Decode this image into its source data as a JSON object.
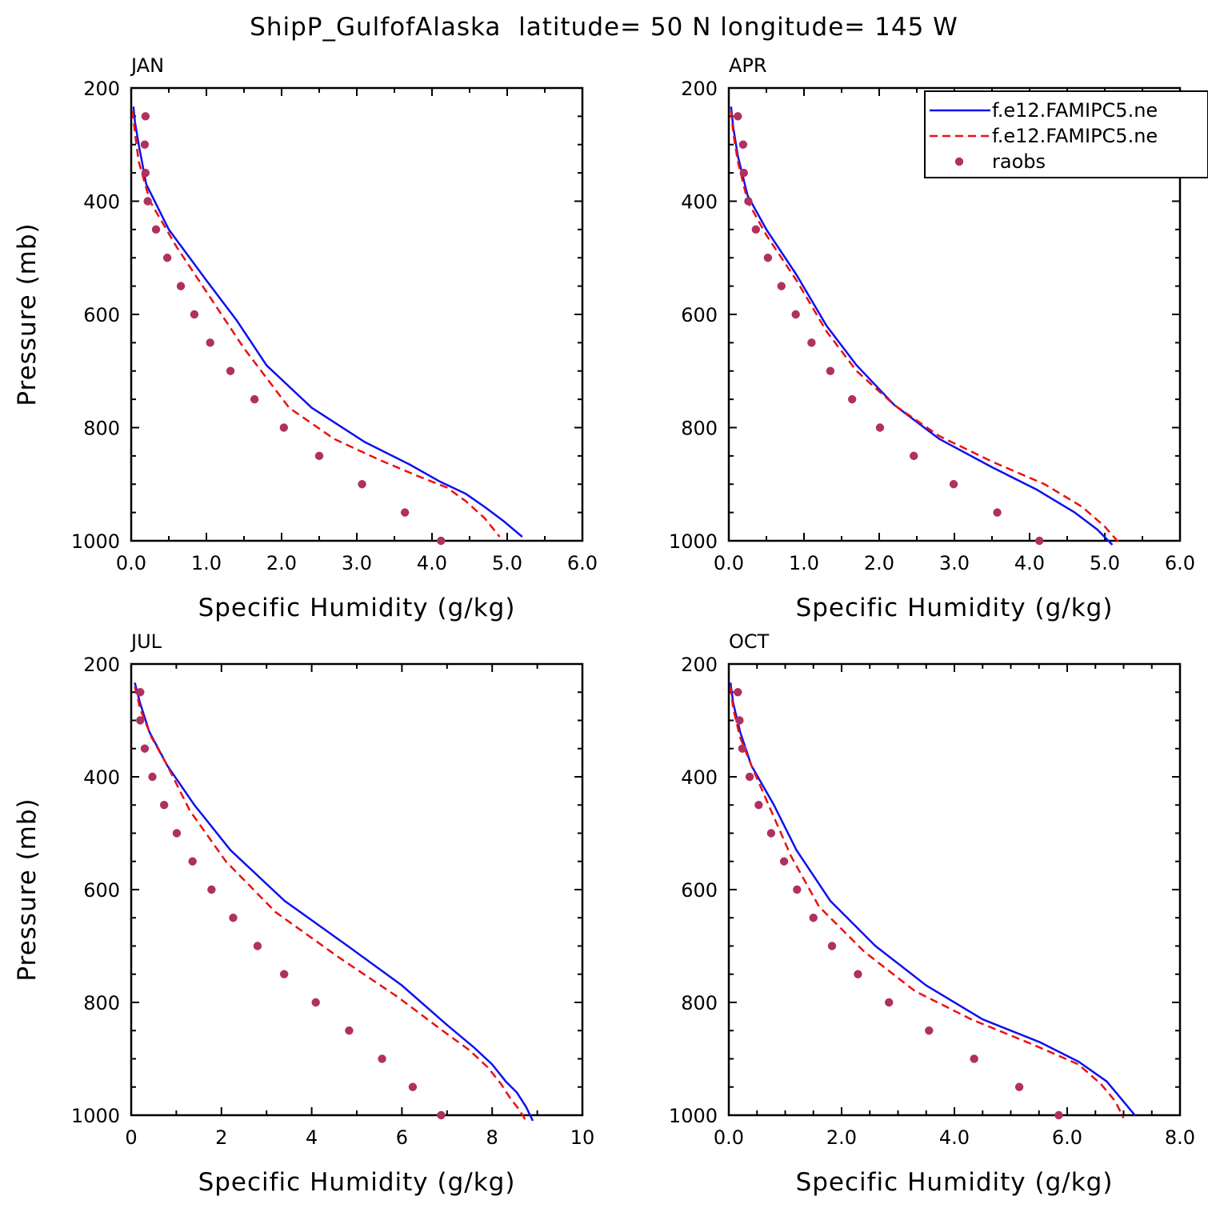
{
  "figure": {
    "title": "ShipP_GulfofAlaska  latitude= 50 N longitude= 145 W",
    "colors": {
      "model1": "#1010ee",
      "model2": "#ee1010",
      "raobs": "#b03060"
    }
  },
  "legend": {
    "panel": 1,
    "entries": [
      {
        "label": "f.e12.FAMIPC5.ne",
        "style": "solid",
        "color": "#1010ee"
      },
      {
        "label": "f.e12.FAMIPC5.ne",
        "style": "dashed",
        "color": "#ee1010"
      },
      {
        "label": "raobs",
        "style": "dot",
        "color": "#b03060"
      }
    ]
  },
  "chart_data": [
    {
      "type": "line",
      "panel_title": "JAN",
      "xlabel": "Specific Humidity (g/kg)",
      "ylabel": "Pressure (mb)",
      "xlim": [
        0,
        6
      ],
      "ylim": [
        1000,
        200
      ],
      "y_reversed": true,
      "xticks": [
        0,
        1,
        2,
        3,
        4,
        5,
        6
      ],
      "xtick_labels": [
        "0.0",
        "1.0",
        "2.0",
        "3.0",
        "4.0",
        "5.0",
        "6.0"
      ],
      "yticks": [
        200,
        400,
        600,
        800,
        1000
      ],
      "ytick_labels": [
        "200",
        "400",
        "600",
        "800",
        "1000"
      ],
      "x_minor": 0.5,
      "y_minor": 50,
      "series": [
        {
          "style": "solid",
          "color": "#1010ee",
          "x": [
            0.03,
            0.05,
            0.1,
            0.2,
            0.5,
            1.0,
            1.4,
            1.8,
            2.4,
            3.1,
            3.7,
            4.1,
            4.45,
            4.7,
            4.95,
            5.2
          ],
          "y": [
            233,
            260,
            300,
            370,
            450,
            540,
            610,
            690,
            765,
            825,
            865,
            895,
            917,
            940,
            965,
            993
          ]
        },
        {
          "style": "dashed",
          "color": "#ee1010",
          "x": [
            0.02,
            0.05,
            0.1,
            0.25,
            0.6,
            1.0,
            1.5,
            2.1,
            2.7,
            3.3,
            3.8,
            4.2,
            4.45,
            4.7,
            4.9
          ],
          "y": [
            240,
            280,
            330,
            400,
            480,
            560,
            660,
            765,
            820,
            857,
            885,
            906,
            930,
            960,
            993
          ]
        },
        {
          "style": "dot",
          "color": "#b03060",
          "x": [
            0.19,
            0.18,
            0.19,
            0.22,
            0.33,
            0.48,
            0.66,
            0.84,
            1.05,
            1.32,
            1.64,
            2.03,
            2.5,
            3.07,
            3.64,
            4.12
          ],
          "y": [
            250,
            300,
            350,
            400,
            450,
            500,
            550,
            600,
            650,
            700,
            750,
            800,
            850,
            900,
            950,
            1000
          ]
        }
      ]
    },
    {
      "type": "line",
      "panel_title": "APR",
      "xlabel": "Specific Humidity (g/kg)",
      "ylabel": "",
      "xlim": [
        0,
        6
      ],
      "ylim": [
        1000,
        200
      ],
      "y_reversed": true,
      "xticks": [
        0,
        1,
        2,
        3,
        4,
        5,
        6
      ],
      "xtick_labels": [
        "0.0",
        "1.0",
        "2.0",
        "3.0",
        "4.0",
        "5.0",
        "6.0"
      ],
      "yticks": [
        200,
        400,
        600,
        800,
        1000
      ],
      "ytick_labels": [
        "200",
        "400",
        "600",
        "800",
        "1000"
      ],
      "x_minor": 0.5,
      "y_minor": 50,
      "series": [
        {
          "style": "solid",
          "color": "#1010ee",
          "x": [
            0.03,
            0.06,
            0.12,
            0.25,
            0.5,
            0.9,
            1.3,
            1.7,
            2.2,
            2.8,
            3.5,
            4.1,
            4.6,
            4.9,
            5.1
          ],
          "y": [
            233,
            270,
            320,
            390,
            450,
            530,
            620,
            690,
            760,
            820,
            870,
            910,
            950,
            980,
            1007
          ]
        },
        {
          "style": "dashed",
          "color": "#ee1010",
          "x": [
            0.03,
            0.06,
            0.12,
            0.25,
            0.5,
            0.9,
            1.3,
            1.7,
            2.2,
            2.8,
            3.5,
            4.2,
            4.7,
            5.0,
            5.2
          ],
          "y": [
            240,
            280,
            330,
            400,
            460,
            540,
            630,
            700,
            760,
            815,
            860,
            900,
            940,
            975,
            1005
          ]
        },
        {
          "style": "dot",
          "color": "#b03060",
          "x": [
            0.12,
            0.19,
            0.2,
            0.26,
            0.36,
            0.52,
            0.7,
            0.89,
            1.1,
            1.35,
            1.64,
            2.01,
            2.46,
            2.99,
            3.57,
            4.13
          ],
          "y": [
            250,
            300,
            350,
            400,
            450,
            500,
            550,
            600,
            650,
            700,
            750,
            800,
            850,
            900,
            950,
            1000
          ]
        }
      ]
    },
    {
      "type": "line",
      "panel_title": "JUL",
      "xlabel": "Specific Humidity (g/kg)",
      "ylabel": "Pressure (mb)",
      "xlim": [
        0,
        10
      ],
      "ylim": [
        1000,
        200
      ],
      "y_reversed": true,
      "xticks": [
        0,
        2,
        4,
        6,
        8,
        10
      ],
      "xtick_labels": [
        "0",
        "2",
        "4",
        "6",
        "8",
        "10"
      ],
      "x_minor": 1,
      "y_minor": 50,
      "yticks": [
        200,
        400,
        600,
        800,
        1000
      ],
      "ytick_labels": [
        "200",
        "400",
        "600",
        "800",
        "1000"
      ],
      "series": [
        {
          "style": "solid",
          "color": "#1010ee",
          "x": [
            0.08,
            0.2,
            0.4,
            0.8,
            1.4,
            2.2,
            3.4,
            4.8,
            6.0,
            7.0,
            7.6,
            8.0,
            8.3,
            8.55,
            8.75,
            8.9
          ],
          "y": [
            233,
            270,
            320,
            380,
            450,
            530,
            620,
            700,
            770,
            840,
            880,
            910,
            940,
            960,
            985,
            1010
          ]
        },
        {
          "style": "dashed",
          "color": "#ee1010",
          "x": [
            0.08,
            0.2,
            0.45,
            0.8,
            1.3,
            2.1,
            3.2,
            4.6,
            5.9,
            6.9,
            7.5,
            7.9,
            8.2,
            8.4,
            8.6,
            8.75
          ],
          "y": [
            240,
            280,
            330,
            380,
            460,
            550,
            640,
            720,
            790,
            850,
            885,
            915,
            945,
            970,
            990,
            1010
          ]
        },
        {
          "style": "dot",
          "color": "#b03060",
          "x": [
            0.2,
            0.2,
            0.3,
            0.47,
            0.73,
            1.01,
            1.36,
            1.78,
            2.26,
            2.8,
            3.39,
            4.09,
            4.83,
            5.56,
            6.24,
            6.87
          ],
          "y": [
            250,
            300,
            350,
            400,
            450,
            500,
            550,
            600,
            650,
            700,
            750,
            800,
            850,
            900,
            950,
            1000
          ]
        }
      ]
    },
    {
      "type": "line",
      "panel_title": "OCT",
      "xlabel": "Specific Humidity (g/kg)",
      "ylabel": "",
      "xlim": [
        0,
        8
      ],
      "ylim": [
        1000,
        200
      ],
      "y_reversed": true,
      "xticks": [
        0,
        2,
        4,
        6,
        8
      ],
      "xtick_labels": [
        "0.0",
        "2.0",
        "4.0",
        "6.0",
        "8.0"
      ],
      "x_minor": 0.5,
      "y_minor": 50,
      "yticks": [
        200,
        400,
        600,
        800,
        1000
      ],
      "ytick_labels": [
        "200",
        "400",
        "600",
        "800",
        "1000"
      ],
      "series": [
        {
          "style": "solid",
          "color": "#1010ee",
          "x": [
            0.03,
            0.08,
            0.2,
            0.4,
            0.8,
            1.2,
            1.8,
            2.6,
            3.5,
            4.5,
            5.5,
            6.2,
            6.7,
            6.95,
            7.2
          ],
          "y": [
            233,
            270,
            320,
            380,
            450,
            530,
            620,
            700,
            770,
            830,
            870,
            905,
            940,
            970,
            1000
          ]
        },
        {
          "style": "dashed",
          "color": "#ee1010",
          "x": [
            0.03,
            0.08,
            0.2,
            0.4,
            0.75,
            1.1,
            1.6,
            2.4,
            3.3,
            4.3,
            5.4,
            6.2,
            6.6,
            6.85,
            7.0
          ],
          "y": [
            240,
            280,
            330,
            380,
            460,
            540,
            630,
            710,
            780,
            830,
            875,
            910,
            945,
            975,
            1005
          ]
        },
        {
          "style": "dot",
          "color": "#b03060",
          "x": [
            0.16,
            0.19,
            0.24,
            0.37,
            0.53,
            0.75,
            0.98,
            1.21,
            1.5,
            1.83,
            2.29,
            2.84,
            3.55,
            4.35,
            5.15,
            5.85
          ],
          "y": [
            250,
            300,
            350,
            400,
            450,
            500,
            550,
            600,
            650,
            700,
            750,
            800,
            850,
            900,
            950,
            1000
          ]
        }
      ]
    }
  ]
}
